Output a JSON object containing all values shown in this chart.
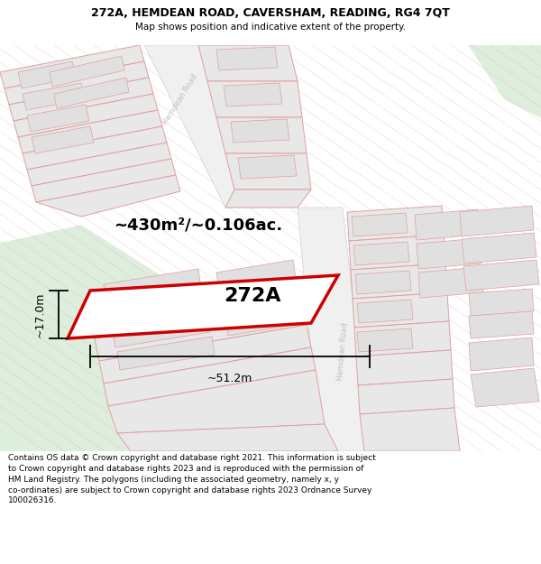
{
  "title_line1": "272A, HEMDEAN ROAD, CAVERSHAM, READING, RG4 7QT",
  "title_line2": "Map shows position and indicative extent of the property.",
  "footer_text": "Contains OS data © Crown copyright and database right 2021. This information is subject\nto Crown copyright and database rights 2023 and is reproduced with the permission of\nHM Land Registry. The polygons (including the associated geometry, namely x, y\nco-ordinates) are subject to Crown copyright and database rights 2023 Ordnance Survey\n100026316.",
  "area_label": "~430m²/~0.106ac.",
  "width_label": "~51.2m",
  "height_label": "~17.0m",
  "property_label": "272A",
  "map_bg": "#ffffff",
  "green_color": "#ddeedd",
  "road_bg": "#f0f0f0",
  "block_fc": "#e8e8e8",
  "block_ec": "#e0a0a0",
  "plot_ec": "#cc0000",
  "plot_fc": "#ffffff",
  "dim_line_color": "#000000",
  "road_label_color": "#c0c0c0",
  "title_fontsize": 9,
  "footer_fontsize": 6.5
}
